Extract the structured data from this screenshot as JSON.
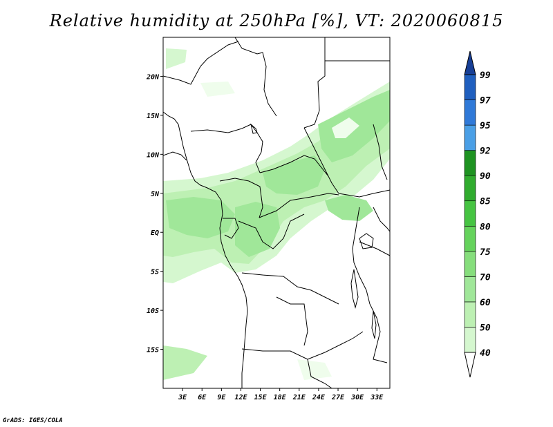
{
  "title": "Relative humidity at 250hPa [%], VT: 2020060815",
  "credit": "GrADS: IGES/COLA",
  "map": {
    "lon_range": [
      0,
      35
    ],
    "lat_range": [
      -20,
      25
    ],
    "lat_labels": [
      "20N",
      "15N",
      "10N",
      "5N",
      "EQ",
      "5S",
      "10S",
      "15S"
    ],
    "lat_values": [
      20,
      15,
      10,
      5,
      0,
      -5,
      -10,
      -15
    ],
    "lon_labels": [
      "3E",
      "6E",
      "9E",
      "12E",
      "15E",
      "18E",
      "21E",
      "24E",
      "27E",
      "30E",
      "33E"
    ],
    "lon_values": [
      3,
      6,
      9,
      12,
      15,
      18,
      21,
      24,
      27,
      30,
      33
    ]
  },
  "colorbar": {
    "levels": [
      "40",
      "50",
      "60",
      "70",
      "75",
      "80",
      "85",
      "90",
      "92",
      "95",
      "97",
      "99"
    ],
    "colors": [
      "#effdec",
      "#d5f7cf",
      "#bdf0b3",
      "#a0e799",
      "#86de7c",
      "#65d35c",
      "#46c442",
      "#30ac2e",
      "#1e9321",
      "#4a9fe6",
      "#2f79d8",
      "#1f5fbf",
      "#173f96"
    ]
  },
  "icons": [
    "colorbar-triangle-top-icon",
    "colorbar-triangle-bottom-icon"
  ]
}
